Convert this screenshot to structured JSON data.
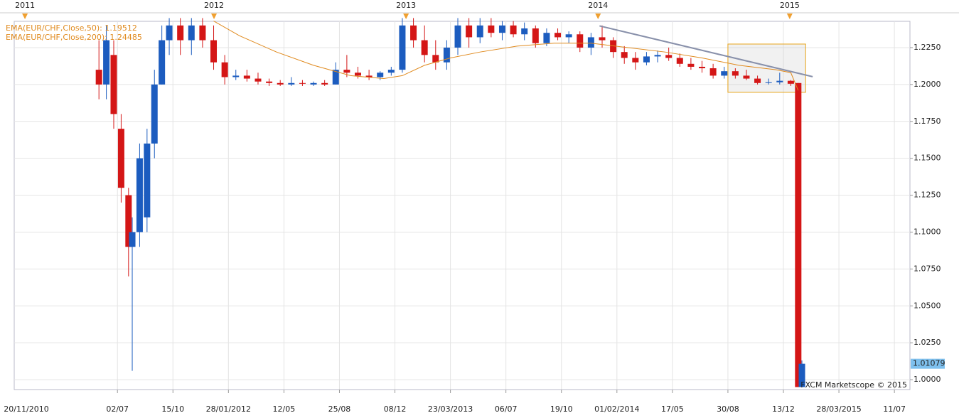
{
  "chart_data": {
    "type": "candlestick",
    "indicators": [
      {
        "label": "EMA(EUR/CHF,Close,50): 1.19512",
        "color": "#e08a1e",
        "x": [
          58,
          65,
          75,
          85,
          95,
          104,
          109,
          115,
          122,
          130,
          140,
          150,
          160,
          170,
          180,
          190,
          200,
          210,
          214,
          216
        ],
        "values": [
          1.243,
          1.233,
          1.222,
          1.213,
          1.206,
          1.204,
          1.206,
          1.213,
          1.218,
          1.222,
          1.226,
          1.228,
          1.228,
          1.225,
          1.222,
          1.218,
          1.213,
          1.21,
          1.208,
          1.196
        ]
      },
      {
        "label": "EMA(EUR/CHF,Close,200): 1.24485",
        "color": "#e08a1e"
      }
    ],
    "candles": {
      "up_color": "#1c5cbf",
      "down_color": "#d41616",
      "x": [
        27,
        29,
        31,
        33,
        35,
        36,
        38,
        40,
        42,
        44,
        46,
        49,
        52,
        55,
        58,
        61,
        64,
        67,
        70,
        73,
        76,
        79,
        82,
        85,
        88,
        91,
        94,
        97,
        100,
        103,
        106,
        109,
        112,
        115,
        118,
        121,
        124,
        127,
        130,
        133,
        136,
        139,
        142,
        145,
        148,
        151,
        154,
        157,
        160,
        163,
        166,
        169,
        172,
        175,
        178,
        181,
        184,
        187,
        190,
        193,
        196,
        199,
        202,
        205,
        208,
        211,
        214,
        216,
        217
      ],
      "open": [
        1.21,
        1.2,
        1.22,
        1.17,
        1.125,
        1.09,
        1.1,
        1.11,
        1.16,
        1.2,
        1.23,
        1.24,
        1.23,
        1.24,
        1.23,
        1.215,
        1.205,
        1.206,
        1.204,
        1.202,
        1.201,
        1.2,
        1.201,
        1.2,
        1.201,
        1.2,
        1.21,
        1.208,
        1.206,
        1.205,
        1.208,
        1.21,
        1.24,
        1.23,
        1.22,
        1.215,
        1.225,
        1.24,
        1.232,
        1.24,
        1.235,
        1.24,
        1.234,
        1.238,
        1.228,
        1.235,
        1.232,
        1.234,
        1.225,
        1.232,
        1.23,
        1.222,
        1.218,
        1.215,
        1.219,
        1.22,
        1.218,
        1.214,
        1.212,
        1.211,
        1.206,
        1.209,
        1.206,
        1.204,
        1.201,
        1.2015,
        1.2025,
        1.201,
        0.995
      ],
      "high": [
        1.23,
        1.24,
        1.23,
        1.18,
        1.13,
        1.11,
        1.16,
        1.17,
        1.21,
        1.24,
        1.245,
        1.245,
        1.245,
        1.245,
        1.24,
        1.22,
        1.21,
        1.21,
        1.208,
        1.204,
        1.203,
        1.205,
        1.203,
        1.202,
        1.203,
        1.215,
        1.22,
        1.212,
        1.21,
        1.209,
        1.212,
        1.245,
        1.245,
        1.24,
        1.23,
        1.23,
        1.245,
        1.245,
        1.245,
        1.245,
        1.243,
        1.243,
        1.242,
        1.24,
        1.238,
        1.238,
        1.236,
        1.236,
        1.235,
        1.24,
        1.232,
        1.226,
        1.222,
        1.222,
        1.223,
        1.225,
        1.221,
        1.218,
        1.216,
        1.214,
        1.212,
        1.211,
        1.21,
        1.206,
        1.204,
        1.208,
        1.203,
        1.201,
        1.013
      ],
      "low": [
        1.19,
        1.19,
        1.17,
        1.12,
        1.07,
        1.006,
        1.09,
        1.1,
        1.15,
        1.2,
        1.22,
        1.22,
        1.22,
        1.225,
        1.21,
        1.2,
        1.203,
        1.202,
        1.2,
        1.199,
        1.199,
        1.199,
        1.199,
        1.199,
        1.199,
        1.2,
        1.205,
        1.204,
        1.203,
        1.203,
        1.206,
        1.208,
        1.225,
        1.215,
        1.21,
        1.21,
        1.22,
        1.225,
        1.228,
        1.232,
        1.23,
        1.232,
        1.23,
        1.225,
        1.226,
        1.23,
        1.228,
        1.222,
        1.22,
        1.225,
        1.218,
        1.214,
        1.21,
        1.213,
        1.215,
        1.216,
        1.212,
        1.21,
        1.208,
        1.204,
        1.204,
        1.204,
        1.203,
        1.2,
        1.2,
        1.2,
        1.199,
        0.995,
        0.995
      ],
      "close": [
        1.2,
        1.23,
        1.18,
        1.13,
        1.09,
        1.1,
        1.15,
        1.16,
        1.2,
        1.23,
        1.24,
        1.23,
        1.24,
        1.23,
        1.215,
        1.205,
        1.206,
        1.204,
        1.202,
        1.201,
        1.2,
        1.201,
        1.2005,
        1.201,
        1.2,
        1.21,
        1.208,
        1.206,
        1.205,
        1.208,
        1.21,
        1.24,
        1.23,
        1.22,
        1.215,
        1.225,
        1.24,
        1.232,
        1.24,
        1.235,
        1.24,
        1.234,
        1.238,
        1.228,
        1.235,
        1.232,
        1.234,
        1.225,
        1.232,
        1.23,
        1.222,
        1.218,
        1.215,
        1.219,
        1.22,
        1.218,
        1.214,
        1.212,
        1.211,
        1.206,
        1.209,
        1.206,
        1.204,
        1.201,
        1.2015,
        1.2025,
        1.2005,
        0.995,
        1.0108
      ]
    },
    "trendline": {
      "color": "#8890aa",
      "x": [
        162.3,
        219.9
      ],
      "values": [
        1.2397,
        1.2053
      ]
    },
    "highlight_box": {
      "color": "#e8a418",
      "x": [
        197,
        218
      ],
      "values": [
        1.2274,
        1.1947
      ]
    },
    "last_price": {
      "value": 1.0108,
      "label": "1.01079"
    },
    "watermark": "FXCM Marketscope © 2015",
    "xlim": [
      4.1,
      246.2
    ],
    "xticks": [
      {
        "value": 0,
        "label": "20/11/2010"
      },
      {
        "value": 32,
        "label": "02/07"
      },
      {
        "value": 47,
        "label": "15/10"
      },
      {
        "value": 62,
        "label": "28/01/2012"
      },
      {
        "value": 77,
        "label": "12/05"
      },
      {
        "value": 92,
        "label": "25/08"
      },
      {
        "value": 107,
        "label": "08/12"
      },
      {
        "value": 122,
        "label": "23/03/2013"
      },
      {
        "value": 137,
        "label": "06/07"
      },
      {
        "value": 152,
        "label": "19/10"
      },
      {
        "value": 167,
        "label": "01/02/2014"
      },
      {
        "value": 182,
        "label": "17/05"
      },
      {
        "value": 197,
        "label": "30/08"
      },
      {
        "value": 212,
        "label": "13/12"
      },
      {
        "value": 227,
        "label": "28/03/2015"
      },
      {
        "value": 242,
        "label": "11/07"
      }
    ],
    "year_markers": [
      {
        "value": 7,
        "label": "2011"
      },
      {
        "value": 58.1,
        "label": "2012"
      },
      {
        "value": 110,
        "label": "2013"
      },
      {
        "value": 161.9,
        "label": "2014"
      },
      {
        "value": 213.7,
        "label": "2015"
      }
    ],
    "ylim": [
      0.9933,
      1.2428
    ],
    "yticks": [
      {
        "value": 1.0,
        "label": "1.0000"
      },
      {
        "value": 1.025,
        "label": "1.0250"
      },
      {
        "value": 1.05,
        "label": "1.0500"
      },
      {
        "value": 1.075,
        "label": "1.0750"
      },
      {
        "value": 1.1,
        "label": "1.1000"
      },
      {
        "value": 1.125,
        "label": "1.1250"
      },
      {
        "value": 1.15,
        "label": "1.1500"
      },
      {
        "value": 1.175,
        "label": "1.1750"
      },
      {
        "value": 1.2,
        "label": "1.2000"
      },
      {
        "value": 1.225,
        "label": "1.2250"
      }
    ],
    "grid": true
  }
}
